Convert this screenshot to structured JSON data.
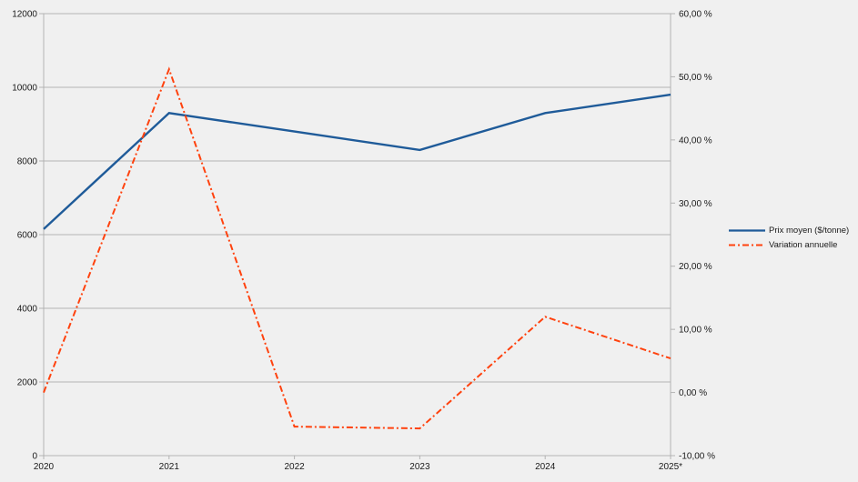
{
  "app": {
    "background_color": "#f0f0f0"
  },
  "chart_data": {
    "type": "line",
    "title": "",
    "xlabel": "",
    "ylabel": "",
    "grid": true,
    "categories": [
      "2020",
      "2021",
      "2022",
      "2023",
      "2024",
      "2025*"
    ],
    "series": [
      {
        "name": "Prix moyen ($/tonne)",
        "axis": "left",
        "color": "#1f5b99",
        "line_style": "solid",
        "values": [
          6150,
          9300,
          8800,
          8300,
          9300,
          9800
        ]
      },
      {
        "name": "Variation annuelle",
        "axis": "right",
        "color": "#ff420e",
        "line_style": "dash-dot",
        "values": [
          0.0,
          51.2,
          -5.4,
          -5.7,
          12.0,
          5.4
        ]
      }
    ],
    "left_axis": {
      "min": 0,
      "max": 12000,
      "step": 2000,
      "tick_labels": [
        "0",
        "2000",
        "4000",
        "6000",
        "8000",
        "10000",
        "12000"
      ]
    },
    "right_axis": {
      "min": -10,
      "max": 60,
      "step": 10,
      "tick_labels": [
        "-10,00 %",
        "0,00 %",
        "10,00 %",
        "20,00 %",
        "30,00 %",
        "40,00 %",
        "50,00 %",
        "60,00 %"
      ]
    },
    "legend": {
      "position": "right",
      "entries": [
        "Prix moyen ($/tonne)",
        "Variation annuelle"
      ]
    },
    "colors": {
      "gridline": "#b3b3b3",
      "axis": "#b3b3b3",
      "text": "#1a1a1a"
    }
  }
}
